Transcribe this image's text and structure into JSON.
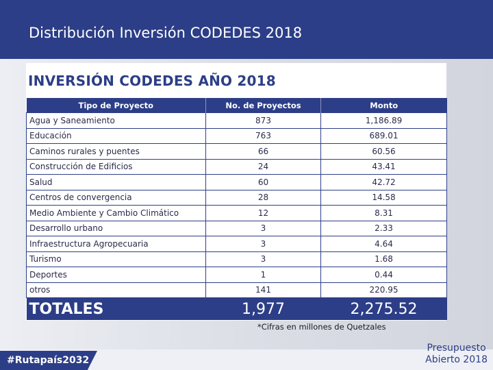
{
  "slide": {
    "title": "Distribución Inversión CODEDES 2018"
  },
  "table": {
    "title": "INVERSIÓN CODEDES AÑO 2018",
    "headers": [
      "Tipo de Proyecto",
      "No. de Proyectos",
      "Monto"
    ],
    "rows": [
      {
        "tipo": "Agua y Saneamiento",
        "proyectos": "873",
        "monto": "1,186.89"
      },
      {
        "tipo": "Educación",
        "proyectos": "763",
        "monto": "689.01"
      },
      {
        "tipo": "Caminos rurales y puentes",
        "proyectos": "66",
        "monto": "60.56"
      },
      {
        "tipo": "Construcción de Edificios",
        "proyectos": "24",
        "monto": "43.41"
      },
      {
        "tipo": "Salud",
        "proyectos": "60",
        "monto": "42.72"
      },
      {
        "tipo": "Centros de convergencia",
        "proyectos": "28",
        "monto": "14.58"
      },
      {
        "tipo": "Medio Ambiente y Cambio Climático",
        "proyectos": "12",
        "monto": "8.31"
      },
      {
        "tipo": "Desarrollo urbano",
        "proyectos": "3",
        "monto": "2.33"
      },
      {
        "tipo": "Infraestructura Agropecuaria",
        "proyectos": "3",
        "monto": "4.64"
      },
      {
        "tipo": "Turismo",
        "proyectos": "3",
        "monto": "1.68"
      },
      {
        "tipo": "Deportes",
        "proyectos": "1",
        "monto": "0.44"
      },
      {
        "tipo": "otros",
        "proyectos": "141",
        "monto": "220.95"
      }
    ],
    "totals": {
      "label": "TOTALES",
      "proyectos": "1,977",
      "monto": "2,275.52"
    },
    "note": "*Cifras en millones de Quetzales"
  },
  "footer": {
    "hashtag": "#Rutapaís2032",
    "brand_line1": "Presupuesto",
    "brand_line2": "Abierto 2018"
  },
  "colors": {
    "primary": "#2c3e87",
    "text": "#2a2a4a"
  }
}
